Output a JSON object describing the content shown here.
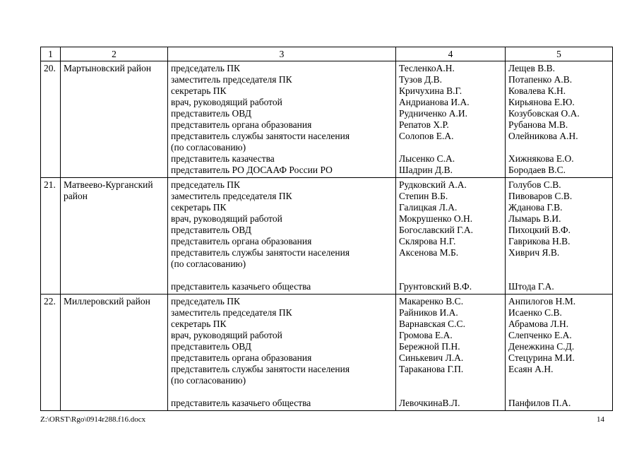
{
  "table": {
    "header": [
      "1",
      "2",
      "3",
      "4",
      "5"
    ],
    "rows": [
      {
        "num": "20.",
        "district": "Мартыновский район",
        "positions": [
          "председатель ПК",
          "заместитель председателя ПК",
          "секретарь ПК",
          "врач, руководящий работой",
          "представитель ОВД",
          "представитель органа образования",
          "представитель службы занятости населения",
          "(по согласованию)",
          "представитель казачества",
          "представитель РО ДОСААФ России РО"
        ],
        "col4": [
          "ТесленкоА.Н.",
          "Тузов Д.В.",
          "Кричухина В.Г.",
          "Андрианова И.А.",
          "Рудниченко А.И.",
          "Репатов Х.Р.",
          "Солопов Е.А.",
          "",
          "Лысенко С.А.",
          "Шадрин Д.В."
        ],
        "col5": [
          "Лещев В.В.",
          "Потапенко А.В.",
          "Ковалева К.Н.",
          "Кирьянова Е.Ю.",
          "Козубовская О.А.",
          "Рубанова М.В.",
          "Олейникова А.Н.",
          "",
          "Хижнякова Е.О.",
          "Бородаев В.С."
        ]
      },
      {
        "num": "21.",
        "district": "Матвеево-Курганский район",
        "positions": [
          "председатель ПК",
          "заместитель председателя ПК",
          "секретарь ПК",
          "врач, руководящий работой",
          "представитель ОВД",
          "представитель органа образования",
          "представитель службы занятости населения",
          "(по согласованию)",
          "",
          "представитель казачьего общества"
        ],
        "col4": [
          "Рудковский А.А.",
          "Степин В.Б.",
          "Галицкая Л.А.",
          "Мокрушенко О.Н.",
          "Богославский Г.А.",
          "Склярова Н.Г.",
          "Аксенова М.Б.",
          "",
          "",
          "Грунтовский В.Ф."
        ],
        "col5": [
          "Голубов С.В.",
          "Пивоваров С.В.",
          "Жданова Г.В.",
          "Лымарь В.И.",
          "Пихоцкий В.Ф.",
          "Гаврикова Н.В.",
          "Хиврич Я.В.",
          "",
          "",
          "Штода Г.А."
        ]
      },
      {
        "num": "22.",
        "district": "Миллеровский район",
        "positions": [
          "председатель ПК",
          "заместитель председателя ПК",
          "секретарь ПК",
          "врач, руководящий работой",
          "представитель ОВД",
          "представитель органа образования",
          "представитель службы занятости населения",
          "(по согласованию)",
          "",
          "представитель казачьего общества"
        ],
        "col4": [
          "Макаренко В.С.",
          "Райников И.А.",
          "Варнавская С.С.",
          "Громова Е.А.",
          "Бережной П.Н.",
          "Синькевич Л.А.",
          "Тараканова Г.П.",
          "",
          "",
          "ЛевочкинаВ.Л."
        ],
        "col5": [
          "Анпилогов Н.М.",
          "Исаенко С.В.",
          "Абрамова Л.Н.",
          "Слепченко Е.А.",
          "Денежкина С.Д.",
          "Стецурина М.И.",
          "Есаян А.Н.",
          "",
          "",
          "Панфилов П.А."
        ]
      }
    ]
  },
  "footer": {
    "file_path": "Z:\\ORST\\Rgo\\0914r288.f16.docx",
    "page_number": "14"
  }
}
